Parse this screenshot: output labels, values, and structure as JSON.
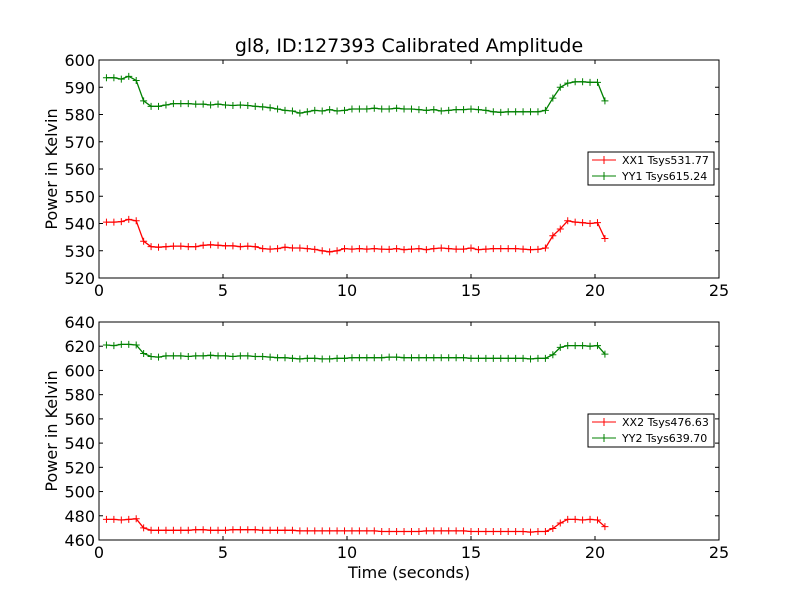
{
  "title": "gl8, ID:127393 Calibrated Amplitude",
  "chart_data": [
    {
      "type": "line",
      "ylabel": "Power in Kelvin",
      "xlabel": "",
      "xlim": [
        0,
        25
      ],
      "ylim": [
        520,
        600
      ],
      "xticks": [
        "0",
        "5",
        "10",
        "15",
        "20",
        "25"
      ],
      "yticks": [
        "520",
        "530",
        "540",
        "550",
        "560",
        "570",
        "580",
        "590",
        "600"
      ],
      "legend_position": "center-right",
      "series": [
        {
          "name": "XX1 Tsys531.77",
          "color": "#ff0000",
          "x": [
            0.3,
            0.6,
            0.9,
            1.2,
            1.5,
            1.8,
            2.1,
            2.4,
            2.7,
            3.0,
            3.3,
            3.6,
            3.9,
            4.2,
            4.5,
            4.8,
            5.1,
            5.4,
            5.7,
            6.0,
            6.3,
            6.6,
            6.9,
            7.2,
            7.5,
            7.8,
            8.1,
            8.4,
            8.7,
            9.0,
            9.3,
            9.6,
            9.9,
            10.2,
            10.5,
            10.8,
            11.1,
            11.4,
            11.7,
            12.0,
            12.3,
            12.6,
            12.9,
            13.2,
            13.5,
            13.8,
            14.1,
            14.4,
            14.7,
            15.0,
            15.3,
            15.6,
            15.9,
            16.2,
            16.5,
            16.8,
            17.1,
            17.4,
            17.7,
            18.0,
            18.3,
            18.6,
            18.9,
            19.2,
            19.5,
            19.8,
            20.1,
            20.4
          ],
          "y": [
            540.5,
            540.5,
            540.7,
            541.5,
            541.0,
            533.5,
            531.5,
            531.3,
            531.5,
            531.7,
            531.7,
            531.5,
            531.5,
            532.0,
            532.2,
            532.0,
            531.8,
            531.8,
            531.5,
            531.7,
            531.5,
            530.8,
            530.6,
            530.8,
            531.3,
            531.0,
            531.0,
            530.8,
            530.5,
            530.0,
            529.6,
            530.0,
            530.8,
            530.6,
            530.8,
            530.6,
            530.8,
            530.6,
            530.5,
            530.8,
            530.4,
            530.6,
            530.8,
            530.4,
            530.8,
            531.0,
            530.8,
            530.6,
            530.6,
            531.0,
            530.4,
            530.6,
            530.8,
            530.8,
            530.8,
            530.8,
            530.6,
            530.4,
            530.5,
            531.0,
            535.5,
            538.0,
            541.0,
            540.5,
            540.3,
            540.0,
            540.3,
            534.5
          ]
        },
        {
          "name": "YY1 Tsys615.24",
          "color": "#008000",
          "x": [
            0.3,
            0.6,
            0.9,
            1.2,
            1.5,
            1.8,
            2.1,
            2.4,
            2.7,
            3.0,
            3.3,
            3.6,
            3.9,
            4.2,
            4.5,
            4.8,
            5.1,
            5.4,
            5.7,
            6.0,
            6.3,
            6.6,
            6.9,
            7.2,
            7.5,
            7.8,
            8.1,
            8.4,
            8.7,
            9.0,
            9.3,
            9.6,
            9.9,
            10.2,
            10.5,
            10.8,
            11.1,
            11.4,
            11.7,
            12.0,
            12.3,
            12.6,
            12.9,
            13.2,
            13.5,
            13.8,
            14.1,
            14.4,
            14.7,
            15.0,
            15.3,
            15.6,
            15.9,
            16.2,
            16.5,
            16.8,
            17.1,
            17.4,
            17.7,
            18.0,
            18.3,
            18.6,
            18.9,
            19.2,
            19.5,
            19.8,
            20.1,
            20.4
          ],
          "y": [
            593.5,
            593.5,
            593.0,
            594.0,
            592.5,
            585.0,
            583.0,
            583.0,
            583.5,
            584.0,
            584.0,
            584.0,
            583.8,
            583.8,
            583.5,
            583.8,
            583.5,
            583.3,
            583.5,
            583.3,
            583.0,
            582.8,
            582.5,
            582.0,
            581.5,
            581.3,
            580.5,
            581.0,
            581.5,
            581.3,
            581.8,
            581.3,
            581.5,
            582.0,
            582.0,
            582.0,
            582.3,
            582.0,
            582.0,
            582.3,
            582.0,
            582.0,
            581.8,
            581.5,
            581.8,
            581.3,
            581.5,
            581.8,
            581.8,
            582.0,
            581.8,
            581.5,
            581.0,
            580.8,
            581.0,
            581.0,
            581.0,
            581.0,
            581.0,
            581.5,
            586.0,
            590.0,
            591.5,
            592.0,
            592.0,
            591.8,
            591.8,
            585.0
          ]
        }
      ]
    },
    {
      "type": "line",
      "ylabel": "Power in Kelvin",
      "xlabel": "Time (seconds)",
      "xlim": [
        0,
        25
      ],
      "ylim": [
        460,
        640
      ],
      "xticks": [
        "0",
        "5",
        "10",
        "15",
        "20",
        "25"
      ],
      "yticks": [
        "460",
        "480",
        "500",
        "520",
        "540",
        "560",
        "580",
        "600",
        "620",
        "640"
      ],
      "legend_position": "center-right",
      "series": [
        {
          "name": "XX2 Tsys476.63",
          "color": "#ff0000",
          "x": [
            0.3,
            0.6,
            0.9,
            1.2,
            1.5,
            1.8,
            2.1,
            2.4,
            2.7,
            3.0,
            3.3,
            3.6,
            3.9,
            4.2,
            4.5,
            4.8,
            5.1,
            5.4,
            5.7,
            6.0,
            6.3,
            6.6,
            6.9,
            7.2,
            7.5,
            7.8,
            8.1,
            8.4,
            8.7,
            9.0,
            9.3,
            9.6,
            9.9,
            10.2,
            10.5,
            10.8,
            11.1,
            11.4,
            11.7,
            12.0,
            12.3,
            12.6,
            12.9,
            13.2,
            13.5,
            13.8,
            14.1,
            14.4,
            14.7,
            15.0,
            15.3,
            15.6,
            15.9,
            16.2,
            16.5,
            16.8,
            17.1,
            17.4,
            17.7,
            18.0,
            18.3,
            18.6,
            18.9,
            19.2,
            19.5,
            19.8,
            20.1,
            20.4
          ],
          "y": [
            477,
            477,
            476.5,
            477,
            477.5,
            470,
            468,
            468,
            468,
            468,
            468,
            468,
            468.5,
            468.5,
            468,
            468,
            468,
            468.5,
            468.5,
            468.5,
            468.5,
            468,
            468,
            468,
            468,
            468,
            467.5,
            467.5,
            467.5,
            467.5,
            467.5,
            467.5,
            467.5,
            467.5,
            467.5,
            467.5,
            467.5,
            467,
            467,
            467,
            467,
            467,
            467,
            467.5,
            467.5,
            467.5,
            467.5,
            467.5,
            467.5,
            467,
            467,
            467,
            467,
            467,
            467,
            467,
            467,
            466.5,
            467,
            467,
            469.5,
            474,
            477,
            477,
            476.5,
            477,
            476.5,
            471
          ]
        },
        {
          "name": "YY2 Tsys639.70",
          "color": "#008000",
          "x": [
            0.3,
            0.6,
            0.9,
            1.2,
            1.5,
            1.8,
            2.1,
            2.4,
            2.7,
            3.0,
            3.3,
            3.6,
            3.9,
            4.2,
            4.5,
            4.8,
            5.1,
            5.4,
            5.7,
            6.0,
            6.3,
            6.6,
            6.9,
            7.2,
            7.5,
            7.8,
            8.1,
            8.4,
            8.7,
            9.0,
            9.3,
            9.6,
            9.9,
            10.2,
            10.5,
            10.8,
            11.1,
            11.4,
            11.7,
            12.0,
            12.3,
            12.6,
            12.9,
            13.2,
            13.5,
            13.8,
            14.1,
            14.4,
            14.7,
            15.0,
            15.3,
            15.6,
            15.9,
            16.2,
            16.5,
            16.8,
            17.1,
            17.4,
            17.7,
            18.0,
            18.3,
            18.6,
            18.9,
            19.2,
            19.5,
            19.8,
            20.1,
            20.4
          ],
          "y": [
            621,
            620.5,
            621.5,
            621.5,
            621,
            614,
            611.5,
            611,
            612,
            612,
            612,
            611.5,
            612,
            612,
            612.5,
            612,
            612,
            611.5,
            612,
            612,
            611.5,
            611.5,
            611,
            610.5,
            610.5,
            610,
            609.5,
            610,
            610,
            609.5,
            609.5,
            610,
            610,
            610.5,
            610.5,
            610.5,
            610.5,
            610.5,
            611,
            611,
            610.5,
            610.5,
            610.5,
            610.5,
            610.5,
            610.5,
            610.5,
            610.5,
            610.5,
            610,
            610,
            610,
            610,
            610,
            610,
            610,
            610,
            609.5,
            610,
            610,
            613,
            619,
            620.5,
            620.5,
            620.5,
            620,
            620.5,
            613.5
          ]
        }
      ]
    }
  ]
}
